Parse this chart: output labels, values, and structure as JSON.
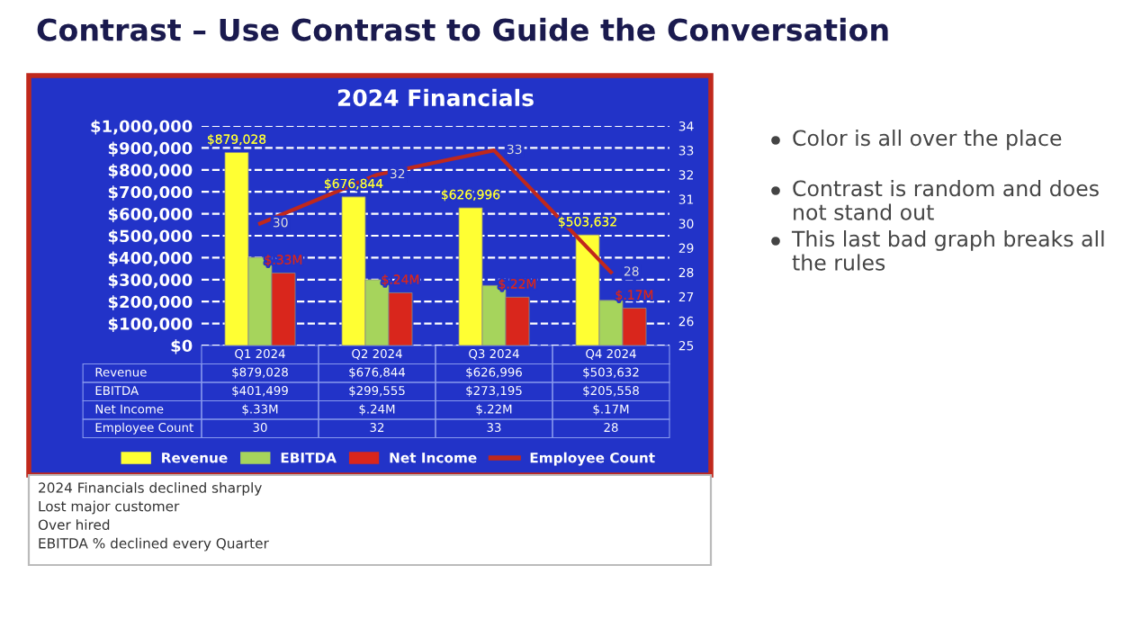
{
  "chart_data": {
    "type": "bar",
    "title": "2024 Financials",
    "categories": [
      "Q1 2024",
      "Q2 2024",
      "Q3 2024",
      "Q4 2024"
    ],
    "series": [
      {
        "name": "Revenue",
        "color": "#ffff33",
        "values": [
          879028,
          676844,
          626996,
          503632
        ],
        "value_labels": [
          "$879,028",
          "$676,844",
          "$626,996",
          "$503,632"
        ],
        "data_labels": true
      },
      {
        "name": "EBITDA",
        "color": "#a6d45c",
        "values": [
          401499,
          299555,
          273195,
          205558
        ],
        "value_labels": [
          "$401,499",
          "$299,555",
          "$273,195",
          "$205,558"
        ]
      },
      {
        "name": "Net Income",
        "color": "#d9261c",
        "values": [
          330000,
          240000,
          220000,
          170000
        ],
        "value_labels": [
          "$.33M",
          "$.24M",
          "$.22M",
          "$.17M"
        ],
        "data_labels": true
      },
      {
        "name": "Employee Count",
        "type": "line",
        "axis": "y2",
        "color": "#c0281c",
        "values": [
          30,
          32,
          33,
          28
        ],
        "value_labels": [
          "30",
          "32",
          "33",
          "28"
        ],
        "data_labels": true
      }
    ],
    "ylim": [
      0,
      1000000
    ],
    "yticks": [
      {
        "value": 0,
        "label": "$0"
      },
      {
        "value": 100000,
        "label": "$100,000"
      },
      {
        "value": 200000,
        "label": "$200,000"
      },
      {
        "value": 300000,
        "label": "$300,000"
      },
      {
        "value": 400000,
        "label": "$400,000"
      },
      {
        "value": 500000,
        "label": "$500,000"
      },
      {
        "value": 600000,
        "label": "$600,000"
      },
      {
        "value": 700000,
        "label": "$700,000"
      },
      {
        "value": 800000,
        "label": "$800,000"
      },
      {
        "value": 900000,
        "label": "$900,000"
      },
      {
        "value": 1000000,
        "label": "$1,000,000"
      }
    ],
    "y2lim": [
      25,
      34
    ],
    "y2ticks": [
      25,
      26,
      27,
      28,
      29,
      30,
      31,
      32,
      33,
      34
    ],
    "grid": "y",
    "legend": "bottom",
    "annotations": [
      "Contrast – Use Contrast to Guide the Conversation",
      "Color is all over the place",
      "Contrast is random and does not stand out",
      "This last bad graph breaks all the rules",
      "2024 Financials declined sharply\nLost major customer\nOver hired\nEBITDA % declined every Quarter"
    ]
  }
}
